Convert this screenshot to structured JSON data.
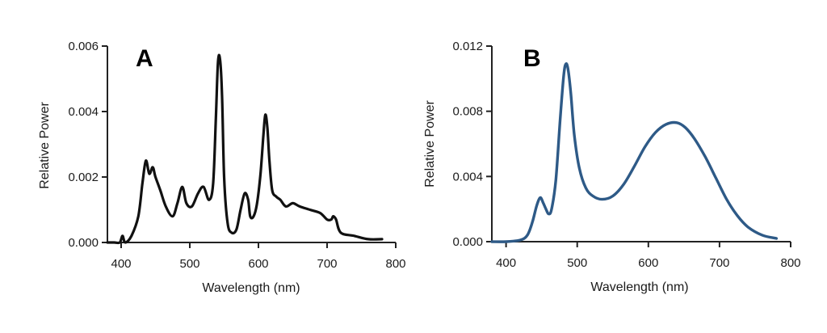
{
  "chart_data": [
    {
      "panel": "A",
      "type": "line",
      "xlabel": "Wavelength (nm)",
      "ylabel": "Relative Power",
      "xlim": [
        380,
        800
      ],
      "ylim": [
        0,
        0.006
      ],
      "xticks": [
        400,
        500,
        600,
        700,
        800
      ],
      "yticks": [
        "0.000",
        "0.002",
        "0.004",
        "0.006"
      ],
      "line_color": "#111111",
      "series": [
        {
          "name": "A",
          "x": [
            380,
            390,
            398,
            402,
            406,
            415,
            425,
            431,
            436,
            441,
            446,
            450,
            457,
            465,
            475,
            482,
            489,
            495,
            503,
            512,
            520,
            528,
            534,
            538,
            541,
            544,
            547,
            550,
            555,
            561,
            568,
            574,
            580,
            585,
            588,
            593,
            598,
            603,
            607,
            610,
            613,
            616,
            620,
            626,
            632,
            640,
            650,
            660,
            675,
            690,
            700,
            706,
            709,
            713,
            720,
            740,
            760,
            780
          ],
          "y": [
            0.0,
            0.0,
            0.0,
            0.0002,
            0.0,
            0.0002,
            0.0008,
            0.0018,
            0.0025,
            0.0021,
            0.0023,
            0.002,
            0.0016,
            0.0011,
            0.0008,
            0.0012,
            0.0017,
            0.0012,
            0.0011,
            0.0015,
            0.0017,
            0.0013,
            0.0018,
            0.0038,
            0.0055,
            0.0056,
            0.0045,
            0.002,
            0.0006,
            0.0003,
            0.0004,
            0.001,
            0.0015,
            0.0013,
            0.0008,
            0.0008,
            0.0012,
            0.0021,
            0.0032,
            0.0039,
            0.0035,
            0.0025,
            0.0016,
            0.0014,
            0.0013,
            0.0011,
            0.0012,
            0.0011,
            0.001,
            0.0009,
            0.0007,
            0.0007,
            0.0008,
            0.0007,
            0.0003,
            0.0002,
            0.0001,
            0.0001
          ]
        }
      ]
    },
    {
      "panel": "B",
      "type": "line",
      "xlabel": "Wavelength (nm)",
      "ylabel": "Relative Power",
      "xlim": [
        380,
        800
      ],
      "ylim": [
        0,
        0.012
      ],
      "xticks": [
        400,
        500,
        600,
        700,
        800
      ],
      "yticks": [
        "0.000",
        "0.004",
        "0.008",
        "0.012"
      ],
      "line_color": "#2e5a87",
      "series": [
        {
          "name": "B",
          "x": [
            380,
            400,
            420,
            430,
            437,
            443,
            448,
            452,
            456,
            460,
            464,
            470,
            476,
            481,
            484,
            487,
            491,
            496,
            503,
            512,
            522,
            535,
            550,
            565,
            580,
            595,
            610,
            625,
            640,
            652,
            665,
            680,
            695,
            710,
            725,
            740,
            760,
            780
          ],
          "y": [
            0.0,
            0.0,
            0.0001,
            0.0004,
            0.0012,
            0.0022,
            0.0027,
            0.0024,
            0.002,
            0.0017,
            0.002,
            0.0038,
            0.0075,
            0.0102,
            0.0109,
            0.0106,
            0.0091,
            0.0065,
            0.0045,
            0.0033,
            0.0028,
            0.0026,
            0.0028,
            0.0035,
            0.0046,
            0.0058,
            0.0067,
            0.0072,
            0.0073,
            0.007,
            0.0063,
            0.0052,
            0.0039,
            0.0026,
            0.0016,
            0.0009,
            0.0004,
            0.0002
          ]
        }
      ]
    }
  ]
}
